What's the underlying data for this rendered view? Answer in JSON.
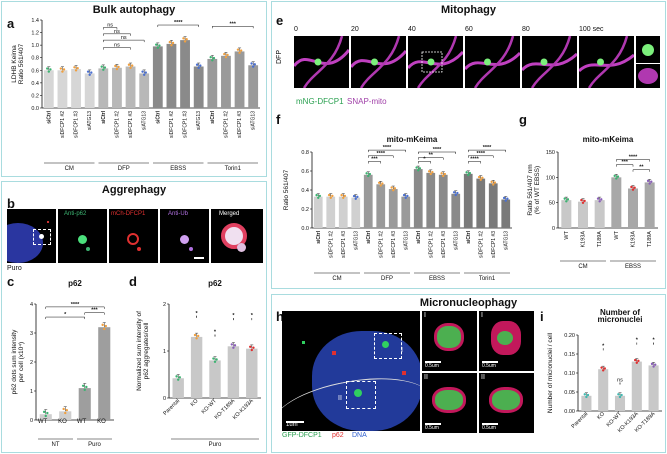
{
  "colors": {
    "border": "#a9dcdf",
    "bar_light": "#c8c8c8",
    "bar_mid": "#a0a0a0",
    "bar_dark": "#6b6b6b",
    "green": "#3cb371",
    "orange": "#f0a040",
    "blue": "#4a6fd0",
    "purple": "#8a5fb8",
    "red": "#e03030",
    "magenta": "#c040c0",
    "teal": "#40b8b0"
  },
  "sections": {
    "bulk": "Bulk autophagy",
    "aggrephagy": "Aggrephagy",
    "mitophagy": "Mitophagy",
    "micronucleophagy": "Micronucleophagy"
  },
  "panel_letters": {
    "a": "a",
    "b": "b",
    "c": "c",
    "d": "d",
    "e": "e",
    "f": "f",
    "g": "g",
    "h": "h",
    "i": "i"
  },
  "microscopy": {
    "b": {
      "labels": [
        "Anti-p62",
        "mCh-DFCP1",
        "Anti-Ub",
        "Merged"
      ],
      "sublabel": "Puro"
    },
    "e": {
      "times": [
        "0",
        "20",
        "40",
        "60",
        "80",
        "100 sec"
      ],
      "side_label": "DFP",
      "legend": [
        "mNG-DFCP1",
        "SNAP-mito"
      ]
    },
    "h": {
      "legend": [
        "GFP-DFCP1",
        "p62",
        "DNA"
      ],
      "roman": [
        "I",
        "I",
        "II",
        "II"
      ],
      "inset_roman": [
        "I",
        "II"
      ],
      "scale": [
        "1um",
        "0.5um",
        "0.5um",
        "0.5um",
        "0.5um"
      ]
    }
  },
  "chart_data": [
    {
      "id": "a",
      "type": "bar",
      "title": "",
      "ylabel": "LDHB Keima\nRatio 561/407",
      "ylim": [
        0,
        1.4
      ],
      "yticks": [
        "0.0",
        "0.2",
        "0.4",
        "0.6",
        "0.8",
        "1.0",
        "1.2",
        "1.4"
      ],
      "categories": [
        "siCtrl",
        "siDFCP1 #2",
        "siDFCP1 #3",
        "siATG13",
        "siCtrl",
        "siDFCP1 #2",
        "siDFCP1 #3",
        "siATG13",
        "siCtrl",
        "siDFCP1 #2",
        "siDFCP1 #3",
        "siATG13",
        "siCtrl",
        "siDFCP1 #2",
        "siDFCP1 #3",
        "siATG13"
      ],
      "values": [
        0.6,
        0.6,
        0.62,
        0.55,
        0.63,
        0.64,
        0.66,
        0.55,
        0.98,
        1.02,
        1.08,
        0.66,
        0.78,
        0.83,
        0.9,
        0.68
      ],
      "groups": [
        "CM",
        "DFP",
        "EBSS",
        "Torin1"
      ],
      "significance": [
        "ns",
        "ns",
        "ns",
        "ns",
        "****",
        "***"
      ]
    },
    {
      "id": "c",
      "type": "bar",
      "title": "p62",
      "ylabel": "p62 dots sum intensity\nper cell (x10⁴)",
      "ylim": [
        0,
        4
      ],
      "yticks": [
        "0",
        "1",
        "2",
        "3",
        "4"
      ],
      "categories": [
        "WT",
        "KO",
        "WT",
        "KO"
      ],
      "values": [
        0.2,
        0.3,
        1.1,
        3.2
      ],
      "groups": [
        "NT",
        "Puro"
      ],
      "significance": [
        "****",
        "*",
        "***"
      ]
    },
    {
      "id": "d",
      "type": "bar",
      "title": "p62",
      "ylabel": "Normalized sum intensity of\np62 aggregates/cell",
      "ylim": [
        0,
        2
      ],
      "yticks": [
        "0",
        "1",
        "2"
      ],
      "categories": [
        "Parental",
        "KO",
        "KO-WT",
        "KO-T189A",
        "KO-K193A"
      ],
      "values": [
        0.42,
        1.3,
        0.8,
        1.1,
        1.05
      ],
      "groups": [
        "Puro"
      ],
      "significance": [
        "*",
        "*",
        "*",
        "*"
      ]
    },
    {
      "id": "f",
      "type": "bar",
      "title": "mito-mKeima",
      "ylabel": "Ratio 561/407",
      "ylim": [
        0,
        0.8
      ],
      "yticks": [
        "0.0",
        "0.2",
        "0.4",
        "0.6",
        "0.8"
      ],
      "categories": [
        "siCtrl",
        "siDFCP1 #2",
        "siDFCP1 #3",
        "siATG13",
        "siCtrl",
        "siDFCP1 #2",
        "siDFCP1 #3",
        "siATG13",
        "siCtrl",
        "siDFCP1 #2",
        "siDFCP1 #3",
        "siATG13",
        "siCtrl",
        "siDFCP1 #2",
        "siDFCP1 #3",
        "siATG13"
      ],
      "values": [
        0.33,
        0.33,
        0.33,
        0.32,
        0.56,
        0.46,
        0.41,
        0.33,
        0.62,
        0.58,
        0.56,
        0.36,
        0.57,
        0.52,
        0.47,
        0.3
      ],
      "groups": [
        "CM",
        "DFP",
        "EBSS",
        "Torin1"
      ],
      "significance": [
        "****",
        "****",
        "***",
        "****",
        "*",
        "**",
        "****",
        "****",
        "****"
      ]
    },
    {
      "id": "g",
      "type": "bar",
      "title": "mito-mKeima",
      "ylabel": "Ratio 561/407 nm\n(% of WT EBSS)",
      "ylim": [
        0,
        150
      ],
      "yticks": [
        "0",
        "50",
        "100",
        "150"
      ],
      "categories": [
        "WT",
        "K193A",
        "T189A",
        "WT",
        "K193A",
        "T189A"
      ],
      "values": [
        55,
        52,
        55,
        100,
        78,
        90
      ],
      "groups": [
        "CM",
        "EBSS"
      ],
      "significance": [
        "****",
        "***",
        "**"
      ]
    },
    {
      "id": "i",
      "type": "bar",
      "title": "Number of\nmicronuclei",
      "ylabel": "Number of micronuclei / cell",
      "ylim": [
        0,
        0.2
      ],
      "yticks": [
        "0.00",
        "0.05",
        "0.10",
        "0.15",
        "0.20"
      ],
      "categories": [
        "Parental",
        "KO",
        "KO-WT",
        "KO-K193A",
        "KO-T189A"
      ],
      "values": [
        0.04,
        0.11,
        0.04,
        0.13,
        0.12
      ],
      "significance": [
        "*",
        "ns",
        "*",
        "*"
      ]
    }
  ]
}
